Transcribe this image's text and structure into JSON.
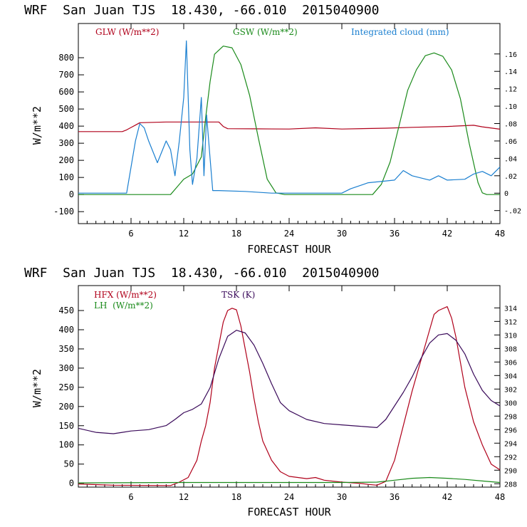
{
  "colors": {
    "red": "#b0001a",
    "green": "#1a8a1a",
    "blue": "#1a7fd0",
    "purple": "#3a0a5a",
    "axis": "#000000"
  },
  "chart_data": [
    {
      "type": "line",
      "title": "WRF  San Juan TJS  18.430, -66.010  2015040900",
      "xlabel": "FORECAST HOUR",
      "ylabel": "W/m**2",
      "xlim": [
        0,
        48
      ],
      "ylim": [
        -170,
        1000
      ],
      "y2lim": [
        -0.035,
        0.195
      ],
      "xticks": [
        "6",
        "12",
        "18",
        "24",
        "30",
        "36",
        "42",
        "48"
      ],
      "yticks": [
        "-100",
        "0",
        "100",
        "200",
        "300",
        "400",
        "500",
        "600",
        "700",
        "800"
      ],
      "y2ticks": [
        "-.02",
        "0",
        ".02",
        ".04",
        ".06",
        ".08",
        ".10",
        ".12",
        ".14",
        ".16"
      ],
      "series": [
        {
          "name": "GLW (W/m**2)",
          "color": "red",
          "axis": "left",
          "points": [
            [
              0,
              368
            ],
            [
              5,
              368
            ],
            [
              5.5,
              378
            ],
            [
              6,
              392
            ],
            [
              6.5,
              406
            ],
            [
              7,
              420
            ],
            [
              10,
              424
            ],
            [
              16,
              424
            ],
            [
              16.5,
              398
            ],
            [
              17,
              385
            ],
            [
              20,
              384
            ],
            [
              24,
              383
            ],
            [
              27,
              390
            ],
            [
              30,
              383
            ],
            [
              35,
              388
            ],
            [
              38,
              393
            ],
            [
              42,
              398
            ],
            [
              45,
              405
            ],
            [
              46,
              396
            ],
            [
              48,
              382
            ]
          ]
        },
        {
          "name": "GSW (W/m**2)",
          "color": "green",
          "axis": "left",
          "points": [
            [
              0,
              0
            ],
            [
              10.5,
              0
            ],
            [
              11,
              30
            ],
            [
              12,
              90
            ],
            [
              13,
              120
            ],
            [
              14,
              220
            ],
            [
              14.5,
              450
            ],
            [
              15,
              660
            ],
            [
              15.5,
              820
            ],
            [
              16.5,
              868
            ],
            [
              17.5,
              858
            ],
            [
              18.5,
              760
            ],
            [
              19.5,
              580
            ],
            [
              20.5,
              330
            ],
            [
              21.5,
              90
            ],
            [
              22.5,
              10
            ],
            [
              23.5,
              0
            ],
            [
              33.5,
              0
            ],
            [
              34.5,
              60
            ],
            [
              35.5,
              190
            ],
            [
              36.5,
              400
            ],
            [
              37.5,
              610
            ],
            [
              38.5,
              730
            ],
            [
              39.5,
              812
            ],
            [
              40.5,
              828
            ],
            [
              41.5,
              808
            ],
            [
              42.5,
              728
            ],
            [
              43.5,
              560
            ],
            [
              44.5,
              300
            ],
            [
              45.5,
              70
            ],
            [
              46,
              10
            ],
            [
              46.5,
              0
            ],
            [
              48,
              0
            ]
          ]
        },
        {
          "name": "Integrated cloud (mm)",
          "color": "blue",
          "axis": "right",
          "points": [
            [
              0,
              0
            ],
            [
              5.5,
              0
            ],
            [
              6,
              0.03
            ],
            [
              6.5,
              0.06
            ],
            [
              7,
              0.08
            ],
            [
              7.5,
              0.075
            ],
            [
              8,
              0.06
            ],
            [
              9,
              0.035
            ],
            [
              10,
              0.06
            ],
            [
              10.5,
              0.05
            ],
            [
              11,
              0.02
            ],
            [
              11.5,
              0.06
            ],
            [
              12,
              0.11
            ],
            [
              12.3,
              0.175
            ],
            [
              12.7,
              0.05
            ],
            [
              13,
              0.01
            ],
            [
              13.5,
              0.04
            ],
            [
              14,
              0.11
            ],
            [
              14.3,
              0.02
            ],
            [
              14.6,
              0.09
            ],
            [
              15,
              0.04
            ],
            [
              15.3,
              0.003
            ],
            [
              16,
              0.003
            ],
            [
              19,
              0.002
            ],
            [
              22,
              0.0
            ],
            [
              30,
              0.0
            ],
            [
              31,
              0.005
            ],
            [
              33,
              0.012
            ],
            [
              36,
              0.015
            ],
            [
              37,
              0.026
            ],
            [
              38,
              0.02
            ],
            [
              40,
              0.015
            ],
            [
              41,
              0.02
            ],
            [
              42,
              0.015
            ],
            [
              44,
              0.016
            ],
            [
              45,
              0.022
            ],
            [
              46,
              0.025
            ],
            [
              47,
              0.02
            ],
            [
              48,
              0.03
            ]
          ]
        }
      ]
    },
    {
      "type": "line",
      "title": "WRF  San Juan TJS  18.430, -66.010  2015040900",
      "xlabel": "FORECAST HOUR",
      "ylabel": "W/m**2",
      "xlim": [
        0,
        48
      ],
      "ylim": [
        -10,
        515
      ],
      "y2lim": [
        287.5,
        317.3
      ],
      "xticks": [
        "6",
        "12",
        "18",
        "24",
        "30",
        "36",
        "42",
        "48"
      ],
      "yticks": [
        "0",
        "50",
        "100",
        "150",
        "200",
        "250",
        "300",
        "350",
        "400",
        "450"
      ],
      "y2ticks": [
        "288",
        "290",
        "292",
        "294",
        "296",
        "298",
        "300",
        "302",
        "304",
        "306",
        "308",
        "310",
        "312",
        "314"
      ],
      "series": [
        {
          "name": "HFX (W/m**2)",
          "color": "red",
          "axis": "left",
          "points": [
            [
              0,
              -2
            ],
            [
              4,
              -5
            ],
            [
              10.5,
              -6
            ],
            [
              11.5,
              3
            ],
            [
              12.5,
              15
            ],
            [
              13.5,
              60
            ],
            [
              14,
              110
            ],
            [
              14.5,
              150
            ],
            [
              15,
              210
            ],
            [
              15.5,
              300
            ],
            [
              16,
              360
            ],
            [
              16.5,
              420
            ],
            [
              17,
              450
            ],
            [
              17.5,
              456
            ],
            [
              18,
              452
            ],
            [
              18.5,
              410
            ],
            [
              19,
              350
            ],
            [
              19.5,
              290
            ],
            [
              20,
              220
            ],
            [
              20.5,
              160
            ],
            [
              21,
              110
            ],
            [
              22,
              60
            ],
            [
              23,
              30
            ],
            [
              24,
              18
            ],
            [
              26,
              12
            ],
            [
              27,
              15
            ],
            [
              28,
              8
            ],
            [
              30,
              3
            ],
            [
              32,
              0
            ],
            [
              33,
              -3
            ],
            [
              34,
              -5
            ],
            [
              35,
              5
            ],
            [
              36,
              60
            ],
            [
              37,
              150
            ],
            [
              38,
              240
            ],
            [
              39,
              320
            ],
            [
              40,
              400
            ],
            [
              40.5,
              440
            ],
            [
              41,
              450
            ],
            [
              42,
              460
            ],
            [
              42.5,
              430
            ],
            [
              43,
              380
            ],
            [
              44,
              250
            ],
            [
              45,
              160
            ],
            [
              46,
              100
            ],
            [
              47,
              50
            ],
            [
              48,
              35
            ]
          ]
        },
        {
          "name": "LH  (W/m**2)",
          "color": "green",
          "axis": "left",
          "points": [
            [
              0,
              1
            ],
            [
              12,
              2
            ],
            [
              18,
              2
            ],
            [
              24,
              2
            ],
            [
              30,
              2
            ],
            [
              34,
              3
            ],
            [
              36,
              8
            ],
            [
              38,
              13
            ],
            [
              40,
              15
            ],
            [
              42,
              13
            ],
            [
              44,
              10
            ],
            [
              46,
              6
            ],
            [
              48,
              2
            ]
          ]
        },
        {
          "name": "TSK (K)",
          "color": "purple",
          "axis": "right",
          "points": [
            [
              0,
              296.2
            ],
            [
              2,
              295.6
            ],
            [
              4,
              295.4
            ],
            [
              5,
              295.6
            ],
            [
              6,
              295.8
            ],
            [
              8,
              296.0
            ],
            [
              10,
              296.6
            ],
            [
              11,
              297.5
            ],
            [
              12,
              298.5
            ],
            [
              13,
              299.0
            ],
            [
              14,
              299.8
            ],
            [
              15,
              302.2
            ],
            [
              16,
              306.5
            ],
            [
              17,
              309.8
            ],
            [
              18,
              310.7
            ],
            [
              19,
              310.3
            ],
            [
              20,
              308.5
            ],
            [
              21,
              305.8
            ],
            [
              22,
              302.8
            ],
            [
              23,
              300.0
            ],
            [
              24,
              298.8
            ],
            [
              26,
              297.5
            ],
            [
              28,
              296.9
            ],
            [
              30,
              296.7
            ],
            [
              32,
              296.5
            ],
            [
              34,
              296.3
            ],
            [
              35,
              297.5
            ],
            [
              36,
              299.5
            ],
            [
              37,
              301.5
            ],
            [
              38,
              303.8
            ],
            [
              39,
              306.5
            ],
            [
              40,
              308.8
            ],
            [
              41,
              310.0
            ],
            [
              42,
              310.2
            ],
            [
              43,
              309.2
            ],
            [
              44,
              307.2
            ],
            [
              45,
              304.2
            ],
            [
              46,
              301.8
            ],
            [
              47,
              300.3
            ],
            [
              48,
              299.5
            ]
          ]
        }
      ]
    }
  ]
}
